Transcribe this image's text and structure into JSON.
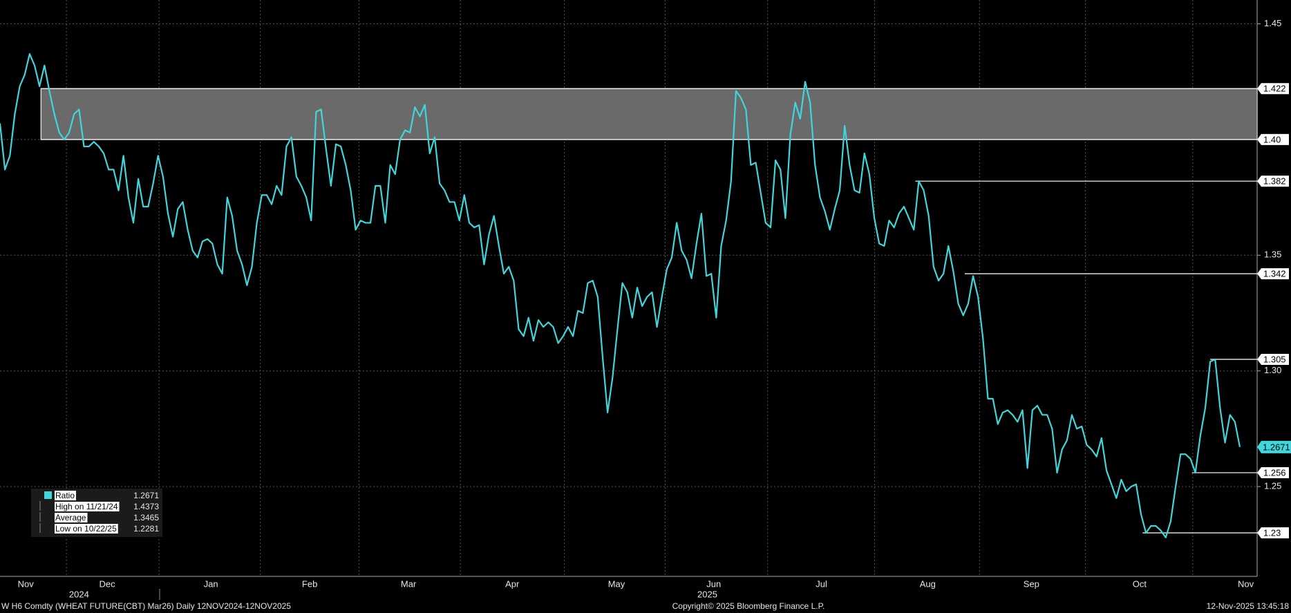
{
  "chart_data": {
    "type": "line",
    "series": [
      {
        "name": "Ratio",
        "color": "#3fd6dc",
        "values": [
          1.407,
          1.387,
          1.393,
          1.411,
          1.423,
          1.428,
          1.437,
          1.432,
          1.423,
          1.432,
          1.421,
          1.411,
          1.403,
          1.4,
          1.403,
          1.411,
          1.413,
          1.397,
          1.397,
          1.399,
          1.397,
          1.394,
          1.387,
          1.387,
          1.378,
          1.393,
          1.375,
          1.364,
          1.383,
          1.371,
          1.371,
          1.381,
          1.393,
          1.384,
          1.368,
          1.358,
          1.37,
          1.373,
          1.361,
          1.352,
          1.349,
          1.356,
          1.357,
          1.355,
          1.346,
          1.342,
          1.375,
          1.367,
          1.352,
          1.346,
          1.337,
          1.345,
          1.364,
          1.376,
          1.376,
          1.372,
          1.38,
          1.376,
          1.397,
          1.401,
          1.384,
          1.38,
          1.375,
          1.365,
          1.412,
          1.413,
          1.396,
          1.38,
          1.398,
          1.397,
          1.389,
          1.378,
          1.361,
          1.365,
          1.364,
          1.364,
          1.38,
          1.38,
          1.364,
          1.389,
          1.385,
          1.4,
          1.404,
          1.403,
          1.414,
          1.41,
          1.415,
          1.394,
          1.401,
          1.381,
          1.378,
          1.373,
          1.373,
          1.365,
          1.376,
          1.364,
          1.362,
          1.363,
          1.346,
          1.359,
          1.367,
          1.354,
          1.342,
          1.345,
          1.339,
          1.318,
          1.315,
          1.323,
          1.313,
          1.322,
          1.319,
          1.321,
          1.319,
          1.312,
          1.315,
          1.319,
          1.315,
          1.326,
          1.325,
          1.338,
          1.339,
          1.332,
          1.306,
          1.282,
          1.297,
          1.318,
          1.338,
          1.334,
          1.323,
          1.336,
          1.328,
          1.332,
          1.334,
          1.319,
          1.332,
          1.344,
          1.349,
          1.364,
          1.352,
          1.348,
          1.34,
          1.355,
          1.368,
          1.341,
          1.342,
          1.323,
          1.354,
          1.365,
          1.382,
          1.421,
          1.418,
          1.413,
          1.389,
          1.39,
          1.377,
          1.364,
          1.362,
          1.391,
          1.387,
          1.366,
          1.402,
          1.416,
          1.409,
          1.425,
          1.416,
          1.389,
          1.375,
          1.369,
          1.361,
          1.37,
          1.378,
          1.406,
          1.389,
          1.378,
          1.377,
          1.394,
          1.385,
          1.366,
          1.355,
          1.354,
          1.365,
          1.362,
          1.368,
          1.371,
          1.366,
          1.361,
          1.382,
          1.378,
          1.367,
          1.345,
          1.339,
          1.342,
          1.354,
          1.343,
          1.329,
          1.324,
          1.329,
          1.341,
          1.332,
          1.314,
          1.288,
          1.288,
          1.277,
          1.282,
          1.283,
          1.281,
          1.278,
          1.283,
          1.258,
          1.283,
          1.285,
          1.281,
          1.281,
          1.275,
          1.256,
          1.266,
          1.27,
          1.281,
          1.275,
          1.276,
          1.268,
          1.266,
          1.263,
          1.271,
          1.257,
          1.251,
          1.245,
          1.253,
          1.248,
          1.25,
          1.251,
          1.238,
          1.23,
          1.233,
          1.233,
          1.231,
          1.228,
          1.235,
          1.25,
          1.264,
          1.264,
          1.262,
          1.256,
          1.272,
          1.284,
          1.304,
          1.305,
          1.284,
          1.269,
          1.281,
          1.278,
          1.2671
        ]
      }
    ],
    "xlim": [
      0,
      254.5
    ],
    "xticks": [
      {
        "value": 5.2,
        "label": "Nov"
      },
      {
        "value": 21.7,
        "label": "Dec"
      },
      {
        "value": 42.7,
        "label": "Jan"
      },
      {
        "value": 62.7,
        "label": "Feb"
      },
      {
        "value": 82.7,
        "label": "Mar"
      },
      {
        "value": 103.7,
        "label": "Apr"
      },
      {
        "value": 124.8,
        "label": "May"
      },
      {
        "value": 144.5,
        "label": "Jun"
      },
      {
        "value": 166.3,
        "label": "Jul"
      },
      {
        "value": 187.8,
        "label": "Aug"
      },
      {
        "value": 208.8,
        "label": "Sep"
      },
      {
        "value": 230.7,
        "label": "Oct"
      },
      {
        "value": 252.2,
        "label": "Nov"
      }
    ],
    "year_labels": [
      {
        "value": 16,
        "label": "2024"
      },
      {
        "value": 143.2,
        "label": "2025"
      }
    ],
    "ylim": [
      1.2112,
      1.4603
    ],
    "yticks": [
      1.25,
      {
        "value": 1.3,
        "label": "1.30"
      },
      1.35,
      {
        "value": 1.4,
        "label": "1.40"
      },
      1.45
    ],
    "grid": true,
    "band": {
      "low": 1.4,
      "high": 1.422,
      "start": 8.3
    },
    "levels": [
      {
        "value": 1.422,
        "start": 8.3
      },
      {
        "value": {
          "value": 1.4,
          "label": "1.40"
        },
        "start": 8.3
      },
      {
        "value": 1.382,
        "start": 185.3
      },
      {
        "value": 1.342,
        "start": 195.3
      },
      {
        "value": 1.305,
        "start": 245
      },
      {
        "value": 1.256,
        "start": 241.3
      },
      {
        "value": 1.23,
        "start": 231.3
      }
    ],
    "legend": [
      {
        "label": "Ratio",
        "value": 1.2671
      },
      {
        "label": "High on 11/21/24",
        "value": 1.4373
      },
      {
        "label": "Average",
        "value": 1.3465
      },
      {
        "label": "Low on 10/22/25",
        "value": 1.2281
      }
    ],
    "footer": {
      "left": "W H6 Comdty (WHEAT FUTURE(CBT) Mar26) Daily 12NOV2024-12NOV2025",
      "center": "Copyright© 2025 Bloomberg Finance L.P.",
      "right": "12-Nov-2025 13:45:18"
    }
  }
}
